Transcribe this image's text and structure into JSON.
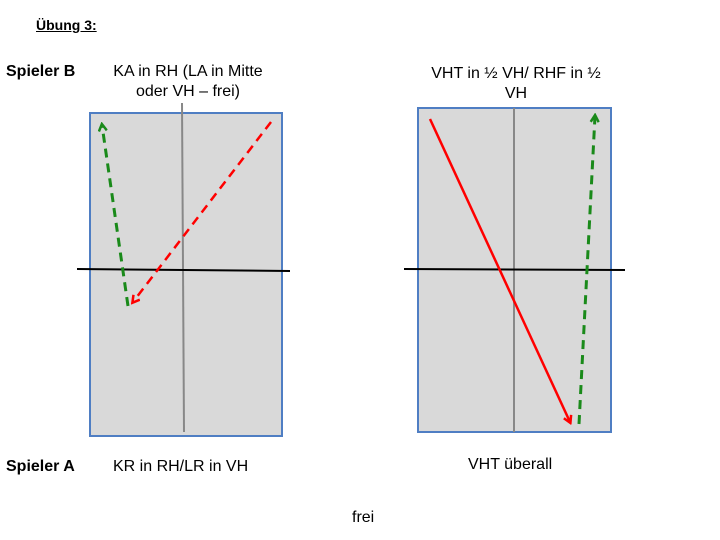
{
  "heading": "Übung 3:",
  "players": {
    "b": "Spieler B",
    "a": "Spieler A"
  },
  "left_diagram": {
    "top_label": "KA in RH (LA in Mitte oder VH – frei)",
    "bottom_label": "KR in RH/LR in VH"
  },
  "right_diagram": {
    "top_label": "VHT in ½ VH/ RHF in ½ VH",
    "bottom_label": "VHT überall"
  },
  "footer": "frei",
  "colors": {
    "table_fill": "#d9d9d9",
    "table_border": "#4f7ec3",
    "center_line": "#888888",
    "net": "#000000",
    "red_arrow": "#ff0000",
    "green_arrow": "#1a8a1a"
  }
}
